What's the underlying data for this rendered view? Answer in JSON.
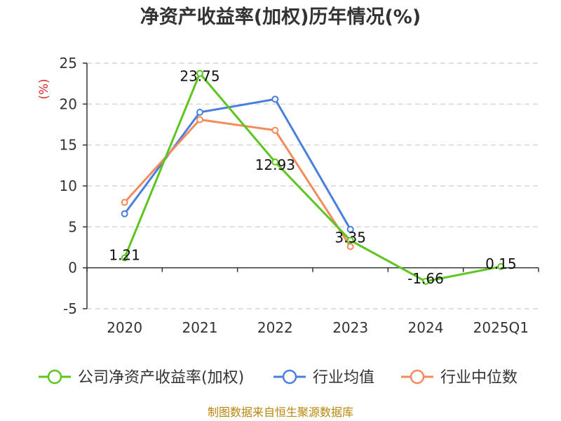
{
  "title": "净资产收益率(加权)历年情况(%)",
  "source_note": "制图数据来自恒生聚源数据库",
  "colors": {
    "title": "#333333",
    "unit": "#d9272a",
    "source": "#b8860b",
    "grid": "#cccccc",
    "axis": "#333333"
  },
  "chart_data": {
    "type": "line",
    "title": "净资产收益率(加权)历年情况(%)",
    "ylabel": "(%)",
    "xlabel": "",
    "categories": [
      "2020",
      "2021",
      "2022",
      "2023",
      "2024",
      "2025Q1"
    ],
    "ylim": [
      -5,
      25
    ],
    "yticks": [
      -5,
      0,
      5,
      10,
      15,
      20,
      25
    ],
    "grid": true,
    "legend_position": "bottom",
    "series": [
      {
        "name": "公司净资产收益率(加权)",
        "color": "#5cc520",
        "values": [
          1.21,
          23.75,
          12.93,
          3.35,
          -1.66,
          0.15
        ],
        "labeled": true
      },
      {
        "name": "行业均值",
        "color": "#4a7fde",
        "values": [
          6.6,
          19.0,
          20.6,
          4.7,
          null,
          null
        ],
        "labeled": false
      },
      {
        "name": "行业中位数",
        "color": "#f58b5a",
        "values": [
          8.0,
          18.1,
          16.8,
          2.6,
          null,
          null
        ],
        "labeled": false
      }
    ],
    "data_labels": [
      "1.21",
      "23.75",
      "12.93",
      "3.35",
      "-1.66",
      "0.15"
    ]
  }
}
